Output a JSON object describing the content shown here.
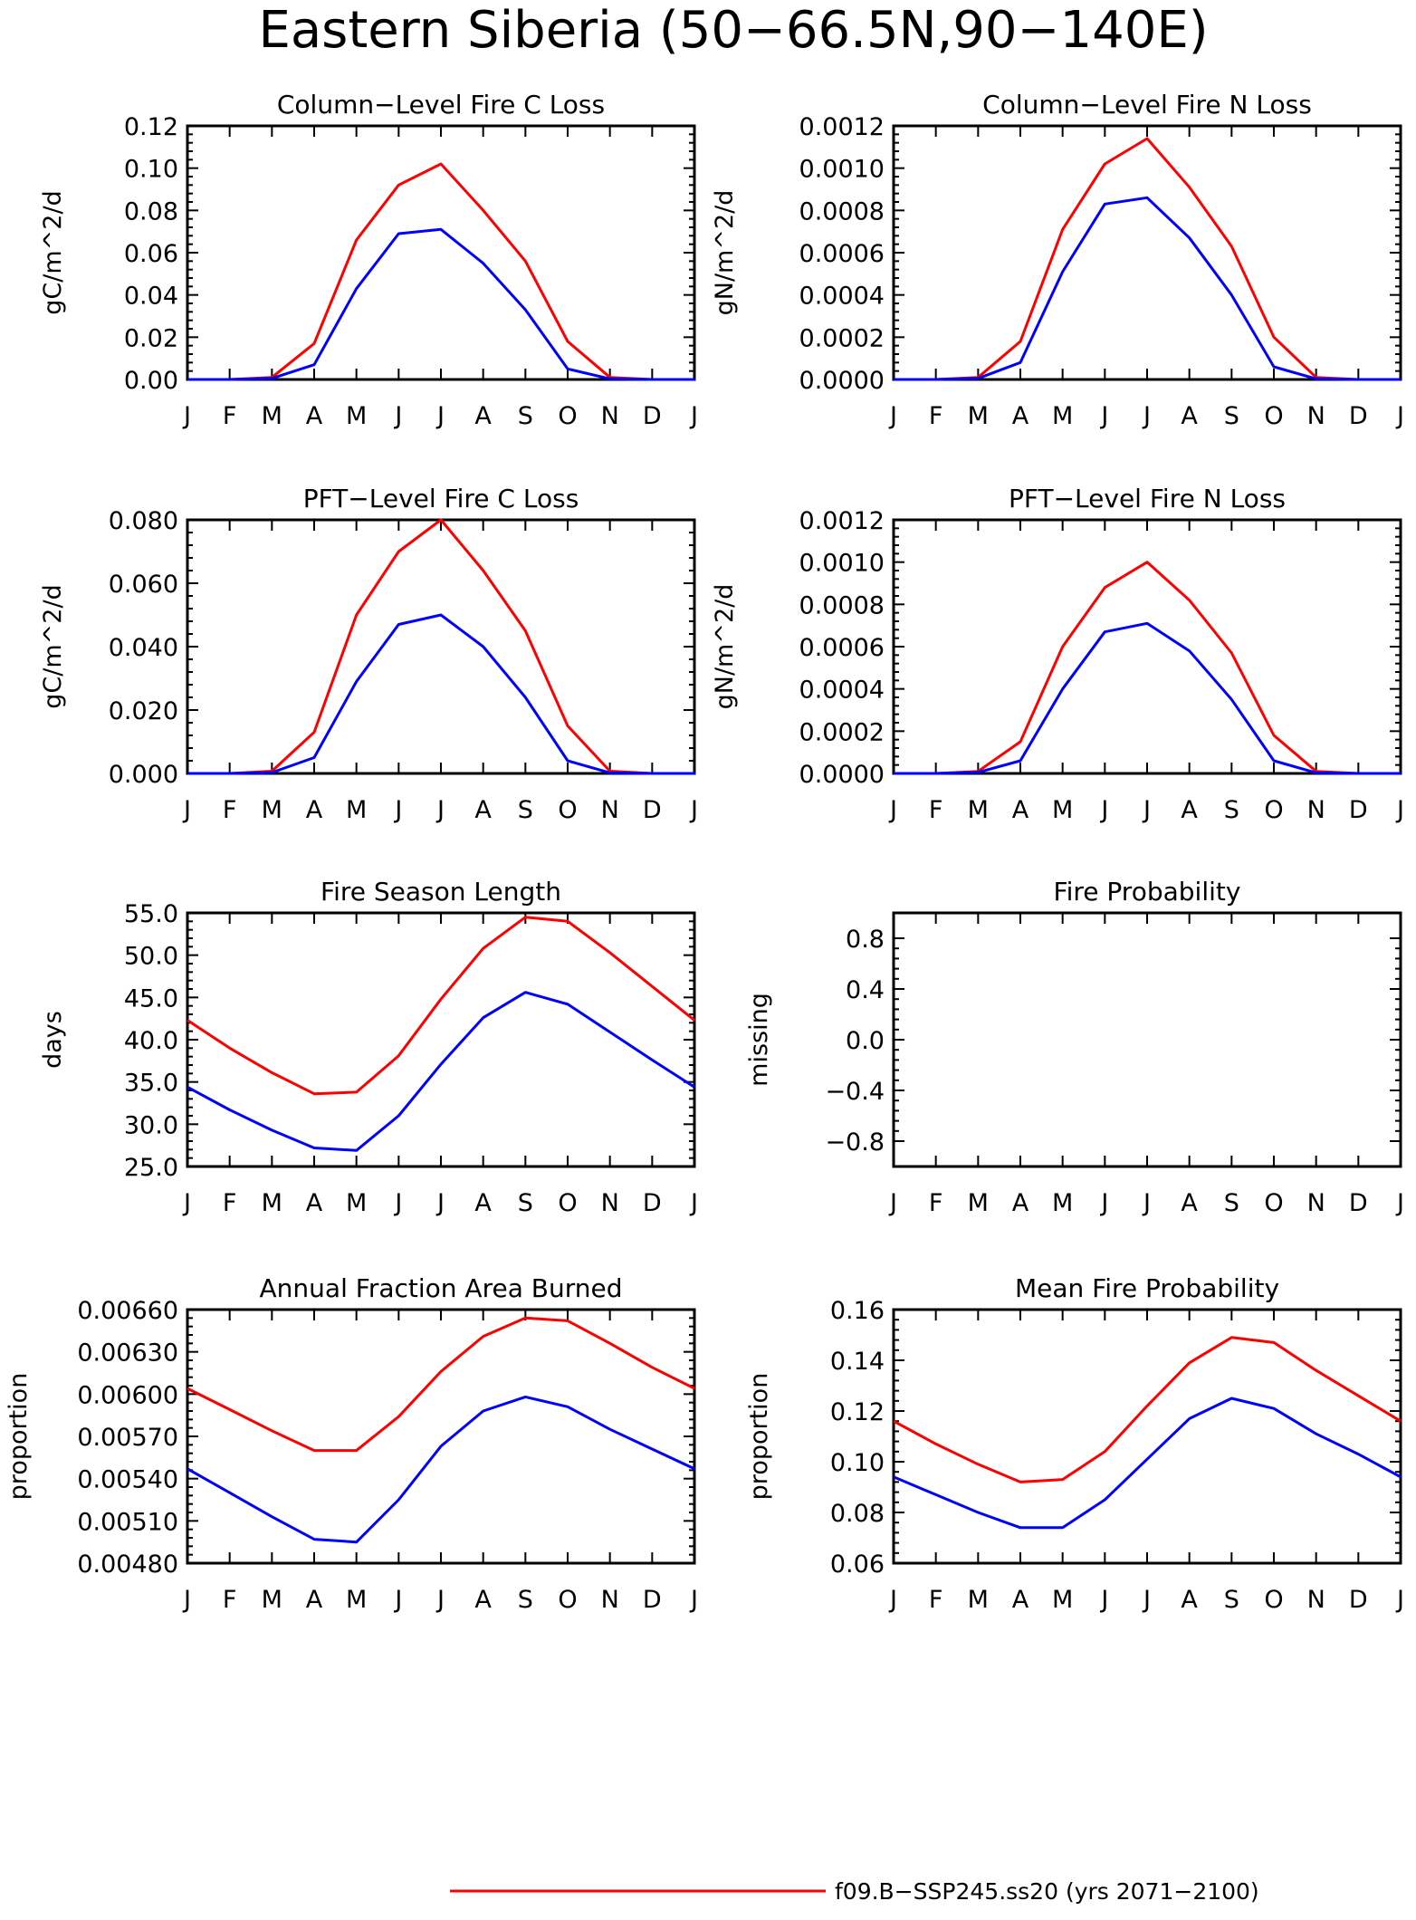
{
  "title": "Eastern Siberia (50−66.5N,90−140E)",
  "month_labels": [
    "J",
    "F",
    "M",
    "A",
    "M",
    "J",
    "J",
    "A",
    "S",
    "O",
    "N",
    "D",
    "J"
  ],
  "series_colors": [
    "#ff0000",
    "#0000ff"
  ],
  "legend": [
    {
      "label": "f09.B−SSP245.ss20 (yrs 2071−2100)",
      "color": "#ff0000"
    }
  ],
  "chart_data": [
    {
      "type": "line",
      "title": "Column−Level Fire C Loss",
      "ylabel": "gC/m^2/d",
      "ylim": [
        0,
        0.12
      ],
      "yticks": [
        0,
        0.02,
        0.04,
        0.06,
        0.08,
        0.1,
        0.12
      ],
      "ytick_labels": [
        "0.00",
        "0.02",
        "0.04",
        "0.06",
        "0.08",
        "0.10",
        "0.12"
      ],
      "series": [
        {
          "values": [
            0,
            0,
            0.001,
            0.017,
            0.066,
            0.092,
            0.102,
            0.08,
            0.056,
            0.018,
            0.001,
            0,
            0
          ]
        },
        {
          "values": [
            0,
            0,
            0.0005,
            0.007,
            0.043,
            0.069,
            0.071,
            0.055,
            0.033,
            0.005,
            0.0003,
            0,
            0
          ]
        }
      ]
    },
    {
      "type": "line",
      "title": "Column−Level Fire N Loss",
      "ylabel": "gN/m^2/d",
      "ylim": [
        0,
        0.0012
      ],
      "yticks": [
        0,
        0.0002,
        0.0004,
        0.0006,
        0.0008,
        0.001,
        0.0012
      ],
      "ytick_labels": [
        "0.0000",
        "0.0002",
        "0.0004",
        "0.0006",
        "0.0008",
        "0.0010",
        "0.0012"
      ],
      "series": [
        {
          "values": [
            0,
            0,
            1e-05,
            0.00018,
            0.00071,
            0.00102,
            0.00114,
            0.00091,
            0.00063,
            0.0002,
            1e-05,
            0,
            0
          ]
        },
        {
          "values": [
            0,
            0,
            5e-06,
            8e-05,
            0.00051,
            0.00083,
            0.00086,
            0.00067,
            0.0004,
            6e-05,
            3e-06,
            0,
            0
          ]
        }
      ]
    },
    {
      "type": "line",
      "title": "PFT−Level Fire C Loss",
      "ylabel": "gC/m^2/d",
      "ylim": [
        0,
        0.08
      ],
      "yticks": [
        0,
        0.02,
        0.04,
        0.06,
        0.08
      ],
      "ytick_labels": [
        "0.000",
        "0.020",
        "0.040",
        "0.060",
        "0.080"
      ],
      "series": [
        {
          "values": [
            0,
            0,
            0.0007,
            0.013,
            0.05,
            0.07,
            0.08,
            0.064,
            0.045,
            0.015,
            0.0007,
            0,
            0
          ]
        },
        {
          "values": [
            0,
            0,
            0.0003,
            0.005,
            0.029,
            0.047,
            0.05,
            0.04,
            0.024,
            0.004,
            0.0002,
            0,
            0
          ]
        }
      ]
    },
    {
      "type": "line",
      "title": "PFT−Level Fire N Loss",
      "ylabel": "gN/m^2/d",
      "ylim": [
        0,
        0.0012
      ],
      "yticks": [
        0,
        0.0002,
        0.0004,
        0.0006,
        0.0008,
        0.001,
        0.0012
      ],
      "ytick_labels": [
        "0.0000",
        "0.0002",
        "0.0004",
        "0.0006",
        "0.0008",
        "0.0010",
        "0.0012"
      ],
      "series": [
        {
          "values": [
            0,
            0,
            1e-05,
            0.00015,
            0.0006,
            0.00088,
            0.001,
            0.00082,
            0.00057,
            0.00018,
            1e-05,
            0,
            0
          ]
        },
        {
          "values": [
            0,
            0,
            5e-06,
            6e-05,
            0.0004,
            0.00067,
            0.00071,
            0.00058,
            0.00035,
            6e-05,
            3e-06,
            0,
            0
          ]
        }
      ]
    },
    {
      "type": "line",
      "title": "Fire Season Length",
      "ylabel": "days",
      "ylim": [
        25,
        55
      ],
      "yticks": [
        25,
        30,
        35,
        40,
        45,
        50,
        55
      ],
      "ytick_labels": [
        "25.0",
        "30.0",
        "35.0",
        "40.0",
        "45.0",
        "50.0",
        "55.0"
      ],
      "series": [
        {
          "values": [
            42.3,
            39.0,
            36.1,
            33.6,
            33.8,
            38.1,
            44.8,
            50.8,
            54.5,
            54.0,
            50.3,
            46.3,
            42.3
          ]
        },
        {
          "values": [
            34.4,
            31.7,
            29.3,
            27.2,
            26.9,
            31.0,
            37.1,
            42.6,
            45.6,
            44.2,
            40.9,
            37.6,
            34.4
          ]
        }
      ]
    },
    {
      "type": "line",
      "title": "Fire Probability",
      "ylabel": "missing",
      "ylim": [
        -1,
        1
      ],
      "yticks": [
        -0.8,
        -0.4,
        0.0,
        0.4,
        0.8
      ],
      "ytick_labels": [
        "−0.8",
        "−0.4",
        "0.0",
        "0.4",
        "0.8"
      ],
      "series": []
    },
    {
      "type": "line",
      "title": "Annual Fraction Area Burned",
      "ylabel": "proportion",
      "ylim": [
        0.0048,
        0.0066
      ],
      "yticks": [
        0.0048,
        0.0051,
        0.0054,
        0.0057,
        0.006,
        0.0063,
        0.0066
      ],
      "ytick_labels": [
        "0.00480",
        "0.00510",
        "0.00540",
        "0.00570",
        "0.00600",
        "0.00630",
        "0.00660"
      ],
      "series": [
        {
          "values": [
            0.00604,
            0.00589,
            0.00574,
            0.0056,
            0.0056,
            0.00584,
            0.00616,
            0.00641,
            0.00654,
            0.00652,
            0.00636,
            0.00619,
            0.00604
          ]
        },
        {
          "values": [
            0.00547,
            0.0053,
            0.00513,
            0.00497,
            0.00495,
            0.00525,
            0.00563,
            0.00588,
            0.00598,
            0.00591,
            0.00575,
            0.00561,
            0.00547
          ]
        }
      ]
    },
    {
      "type": "line",
      "title": "Mean Fire Probability",
      "ylabel": "proportion",
      "ylim": [
        0.06,
        0.16
      ],
      "yticks": [
        0.06,
        0.08,
        0.1,
        0.12,
        0.14,
        0.16
      ],
      "ytick_labels": [
        "0.06",
        "0.08",
        "0.10",
        "0.12",
        "0.14",
        "0.16"
      ],
      "series": [
        {
          "values": [
            0.116,
            0.107,
            0.099,
            0.092,
            0.093,
            0.104,
            0.122,
            0.139,
            0.149,
            0.147,
            0.136,
            0.126,
            0.116
          ]
        },
        {
          "values": [
            0.094,
            0.087,
            0.08,
            0.074,
            0.074,
            0.085,
            0.101,
            0.117,
            0.125,
            0.121,
            0.111,
            0.103,
            0.094
          ]
        }
      ]
    }
  ]
}
